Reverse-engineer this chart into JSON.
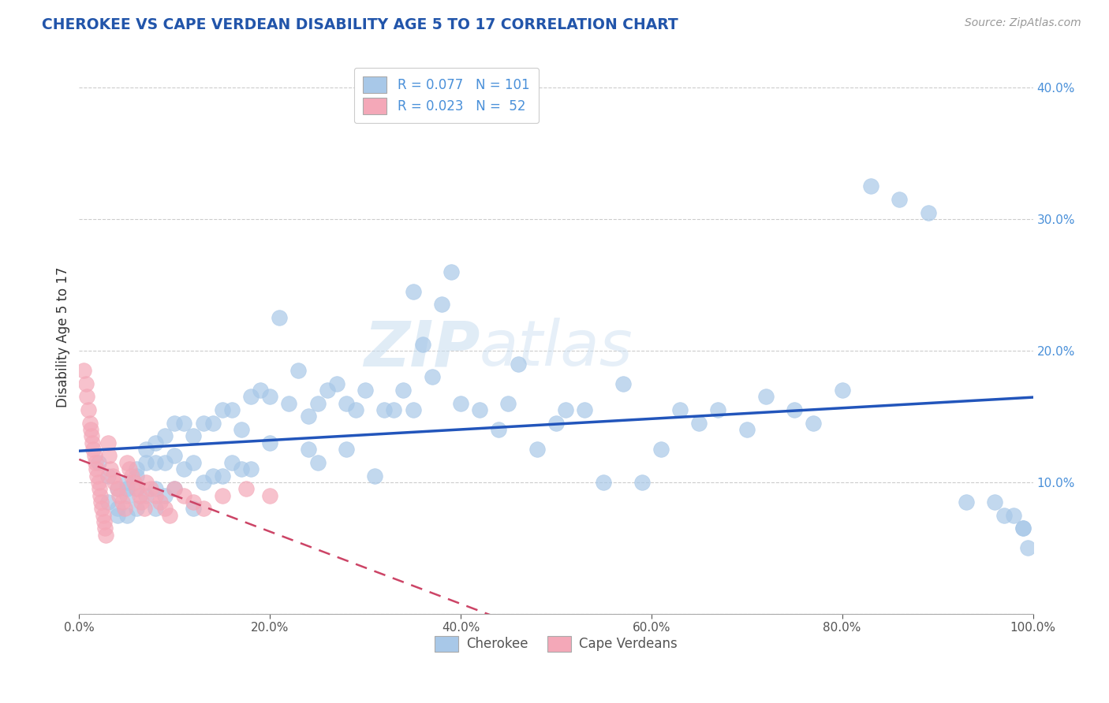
{
  "title": "CHEROKEE VS CAPE VERDEAN DISABILITY AGE 5 TO 17 CORRELATION CHART",
  "source": "Source: ZipAtlas.com",
  "ylabel": "Disability Age 5 to 17",
  "xlim": [
    0.0,
    1.0
  ],
  "ylim": [
    -0.02,
    0.44
  ],
  "plot_ylim": [
    0.0,
    0.42
  ],
  "cherokee_R": 0.077,
  "cherokee_N": 101,
  "capeverdean_R": 0.023,
  "capeverdean_N": 52,
  "cherokee_color": "#A8C8E8",
  "capeverdean_color": "#F4A8B8",
  "cherokee_line_color": "#2255BB",
  "capeverdean_line_color": "#CC4466",
  "background_color": "#ffffff",
  "grid_color": "#cccccc",
  "watermark": "ZIPatlas",
  "cherokee_x": [
    0.02,
    0.03,
    0.03,
    0.04,
    0.04,
    0.04,
    0.05,
    0.05,
    0.05,
    0.05,
    0.06,
    0.06,
    0.06,
    0.06,
    0.07,
    0.07,
    0.07,
    0.08,
    0.08,
    0.08,
    0.08,
    0.09,
    0.09,
    0.09,
    0.1,
    0.1,
    0.1,
    0.11,
    0.11,
    0.12,
    0.12,
    0.12,
    0.13,
    0.13,
    0.14,
    0.14,
    0.15,
    0.15,
    0.16,
    0.16,
    0.17,
    0.17,
    0.18,
    0.18,
    0.19,
    0.2,
    0.2,
    0.21,
    0.22,
    0.23,
    0.24,
    0.24,
    0.25,
    0.25,
    0.26,
    0.27,
    0.28,
    0.28,
    0.29,
    0.3,
    0.31,
    0.32,
    0.33,
    0.34,
    0.35,
    0.35,
    0.36,
    0.37,
    0.38,
    0.39,
    0.4,
    0.42,
    0.44,
    0.45,
    0.46,
    0.48,
    0.5,
    0.51,
    0.53,
    0.55,
    0.57,
    0.59,
    0.61,
    0.63,
    0.65,
    0.67,
    0.7,
    0.72,
    0.75,
    0.77,
    0.8,
    0.83,
    0.86,
    0.89,
    0.93,
    0.96,
    0.97,
    0.98,
    0.99,
    0.99,
    0.995
  ],
  "cherokee_y": [
    0.115,
    0.105,
    0.085,
    0.095,
    0.08,
    0.075,
    0.1,
    0.095,
    0.09,
    0.075,
    0.11,
    0.105,
    0.095,
    0.08,
    0.125,
    0.115,
    0.09,
    0.13,
    0.115,
    0.095,
    0.08,
    0.135,
    0.115,
    0.09,
    0.145,
    0.12,
    0.095,
    0.145,
    0.11,
    0.135,
    0.115,
    0.08,
    0.145,
    0.1,
    0.145,
    0.105,
    0.155,
    0.105,
    0.155,
    0.115,
    0.14,
    0.11,
    0.165,
    0.11,
    0.17,
    0.165,
    0.13,
    0.225,
    0.16,
    0.185,
    0.15,
    0.125,
    0.16,
    0.115,
    0.17,
    0.175,
    0.125,
    0.16,
    0.155,
    0.17,
    0.105,
    0.155,
    0.155,
    0.17,
    0.245,
    0.155,
    0.205,
    0.18,
    0.235,
    0.26,
    0.16,
    0.155,
    0.14,
    0.16,
    0.19,
    0.125,
    0.145,
    0.155,
    0.155,
    0.1,
    0.175,
    0.1,
    0.125,
    0.155,
    0.145,
    0.155,
    0.14,
    0.165,
    0.155,
    0.145,
    0.17,
    0.325,
    0.315,
    0.305,
    0.085,
    0.085,
    0.075,
    0.075,
    0.065,
    0.065,
    0.05
  ],
  "capeverdean_x": [
    0.005,
    0.007,
    0.008,
    0.01,
    0.011,
    0.012,
    0.013,
    0.014,
    0.015,
    0.016,
    0.017,
    0.018,
    0.019,
    0.02,
    0.021,
    0.022,
    0.023,
    0.024,
    0.025,
    0.026,
    0.027,
    0.028,
    0.03,
    0.031,
    0.033,
    0.035,
    0.037,
    0.04,
    0.042,
    0.045,
    0.048,
    0.05,
    0.053,
    0.055,
    0.058,
    0.06,
    0.063,
    0.065,
    0.068,
    0.07,
    0.075,
    0.08,
    0.085,
    0.09,
    0.095,
    0.1,
    0.11,
    0.12,
    0.13,
    0.15,
    0.175,
    0.2
  ],
  "capeverdean_y": [
    0.185,
    0.175,
    0.165,
    0.155,
    0.145,
    0.14,
    0.135,
    0.13,
    0.125,
    0.12,
    0.115,
    0.11,
    0.105,
    0.1,
    0.095,
    0.09,
    0.085,
    0.08,
    0.075,
    0.07,
    0.065,
    0.06,
    0.13,
    0.12,
    0.11,
    0.105,
    0.1,
    0.095,
    0.09,
    0.085,
    0.08,
    0.115,
    0.11,
    0.105,
    0.1,
    0.095,
    0.09,
    0.085,
    0.08,
    0.1,
    0.095,
    0.09,
    0.085,
    0.08,
    0.075,
    0.095,
    0.09,
    0.085,
    0.08,
    0.09,
    0.095,
    0.09
  ]
}
